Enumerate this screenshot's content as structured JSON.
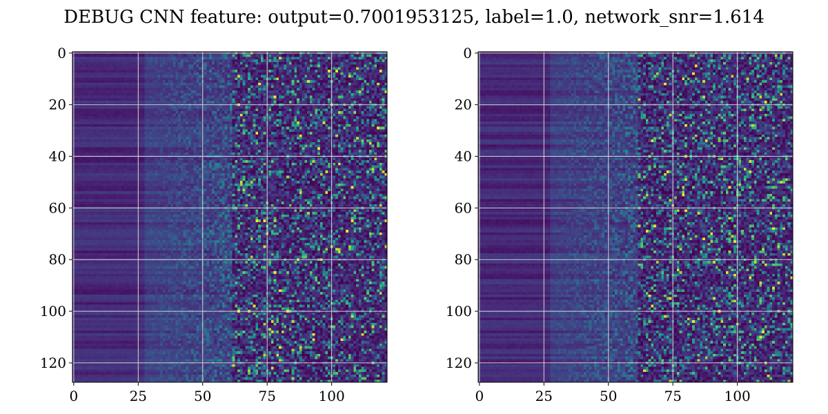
{
  "title": "DEBUG CNN feature: output=0.7001953125, label=1.0, network_snr=1.614",
  "chart_data": [
    {
      "type": "heatmap",
      "colormap": "viridis",
      "rows": 128,
      "cols": 122,
      "grid": true,
      "xticks": [
        0,
        25,
        50,
        75,
        100
      ],
      "yticks": [
        0,
        20,
        40,
        60,
        80,
        100,
        120
      ],
      "xlim": [
        -0.5,
        121.5
      ],
      "ylim": [
        127.5,
        -0.5
      ],
      "seed": 7,
      "bright_points": [
        [
          72,
          12
        ],
        [
          78,
          17
        ],
        [
          95,
          37
        ],
        [
          74,
          65
        ],
        [
          71,
          65
        ],
        [
          83,
          100
        ],
        [
          100,
          20
        ],
        [
          108,
          52
        ],
        [
          78,
          85
        ],
        [
          80,
          92
        ]
      ]
    },
    {
      "type": "heatmap",
      "colormap": "viridis",
      "rows": 128,
      "cols": 122,
      "grid": true,
      "xticks": [
        0,
        25,
        50,
        75,
        100
      ],
      "yticks": [
        0,
        20,
        40,
        60,
        80,
        100,
        120
      ],
      "xlim": [
        -0.5,
        121.5
      ],
      "ylim": [
        127.5,
        -0.5
      ],
      "seed": 19,
      "bright_points": [
        [
          83,
          104
        ],
        [
          90,
          70
        ],
        [
          80,
          28
        ]
      ]
    }
  ],
  "colors": {
    "grid": "#d9d9d9",
    "frame": "#000000",
    "background": "#ffffff"
  }
}
